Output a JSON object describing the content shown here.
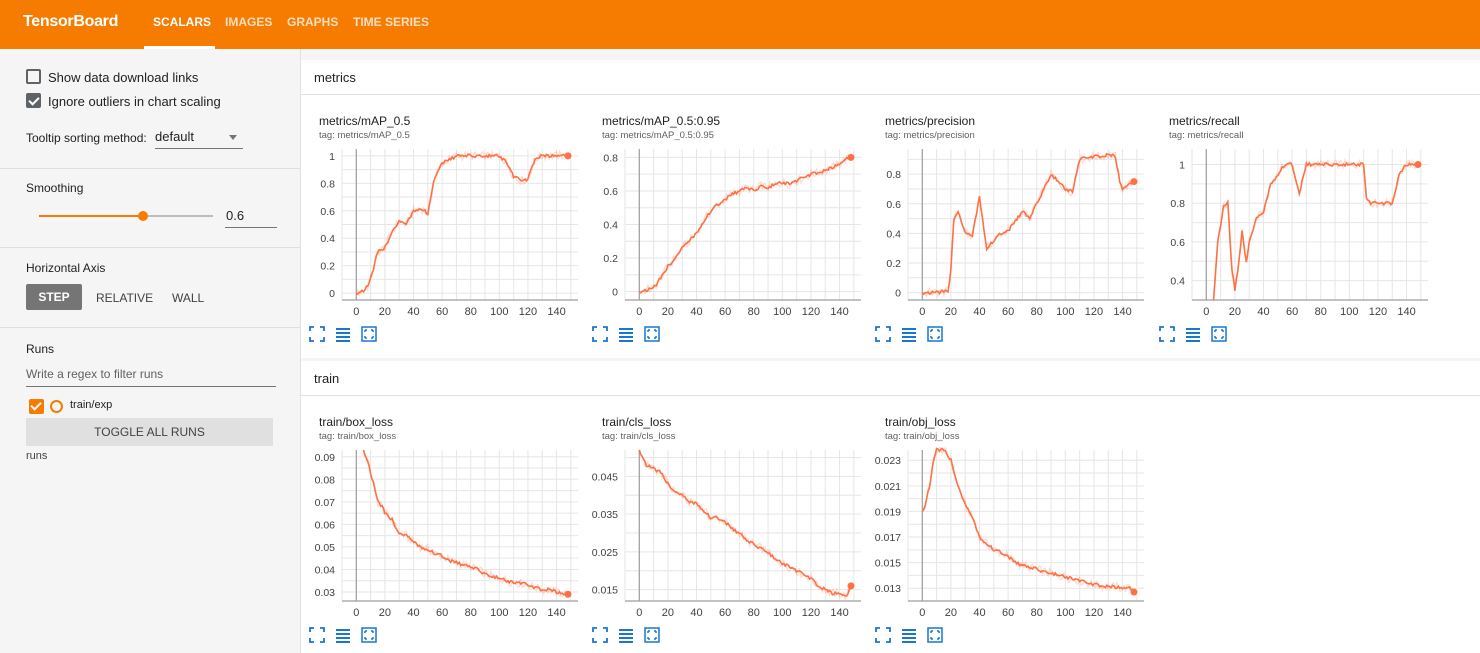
{
  "app": {
    "title": "TensorBoard"
  },
  "tabs": [
    {
      "label": "SCALARS",
      "active": true
    },
    {
      "label": "IMAGES"
    },
    {
      "label": "GRAPHS"
    },
    {
      "label": "TIME SERIES"
    }
  ],
  "sidebar": {
    "show_download_label": "Show data download links",
    "show_download_checked": false,
    "ignore_outliers_label": "Ignore outliers in chart scaling",
    "ignore_outliers_checked": true,
    "tooltip_label": "Tooltip sorting method:",
    "tooltip_value": "default",
    "smoothing_label": "Smoothing",
    "smoothing_value": "0.6",
    "smoothing_fraction": 0.6,
    "axis_label": "Horizontal Axis",
    "axis_buttons": [
      "STEP",
      "RELATIVE",
      "WALL"
    ],
    "axis_selected": "STEP",
    "runs_label": "Runs",
    "filter_placeholder": "Write a regex to filter runs",
    "run_name": "train/exp",
    "toggle_label": "TOGGLE ALL RUNS",
    "runs_dir": "runs"
  },
  "colors": {
    "brand": "#f57c00",
    "series": "#ff7043",
    "icon": "#1976d2"
  },
  "sections": [
    {
      "name": "metrics",
      "charts": [
        {
          "title": "metrics/mAP_0.5",
          "tag": "tag: metrics/mAP_0.5"
        },
        {
          "title": "metrics/mAP_0.5:0.95",
          "tag": "tag: metrics/mAP_0.5:0.95"
        },
        {
          "title": "metrics/precision",
          "tag": "tag: metrics/precision"
        },
        {
          "title": "metrics/recall",
          "tag": "tag: metrics/recall"
        }
      ]
    },
    {
      "name": "train",
      "charts": [
        {
          "title": "train/box_loss",
          "tag": "tag: train/box_loss"
        },
        {
          "title": "train/cls_loss",
          "tag": "tag: train/cls_loss"
        },
        {
          "title": "train/obj_loss",
          "tag": "tag: train/obj_loss"
        }
      ]
    }
  ],
  "chart_data": [
    {
      "type": "line",
      "title": "metrics/mAP_0.5",
      "xlim": [
        -10,
        155
      ],
      "ylim": [
        -0.05,
        1.05
      ],
      "xticks": [
        0,
        20,
        40,
        60,
        80,
        100,
        120,
        140
      ],
      "yticks": [
        0,
        0.2,
        0.4,
        0.6,
        0.8,
        1
      ],
      "ytick_labels": [
        "0",
        "0.2",
        "0.4",
        "0.6",
        "0.8",
        "1"
      ],
      "series": [
        {
          "x": [
            0,
            5,
            8,
            10,
            15,
            20,
            25,
            30,
            35,
            40,
            45,
            50,
            55,
            60,
            65,
            70,
            80,
            90,
            100,
            105,
            110,
            115,
            120,
            125,
            130,
            140,
            148
          ],
          "y": [
            0,
            0.02,
            0.05,
            0.1,
            0.3,
            0.33,
            0.45,
            0.52,
            0.5,
            0.6,
            0.62,
            0.58,
            0.85,
            0.95,
            0.97,
            1,
            1,
            1,
            1,
            0.95,
            0.85,
            0.82,
            0.83,
            0.98,
            1,
            1,
            1
          ]
        }
      ]
    },
    {
      "type": "line",
      "title": "metrics/mAP_0.5:0.95",
      "xlim": [
        -10,
        155
      ],
      "ylim": [
        -0.05,
        0.85
      ],
      "xticks": [
        0,
        20,
        40,
        60,
        80,
        100,
        120,
        140
      ],
      "yticks": [
        0,
        0.2,
        0.4,
        0.6,
        0.8
      ],
      "ytick_labels": [
        "0",
        "0.2",
        "0.4",
        "0.6",
        "0.8"
      ],
      "series": [
        {
          "x": [
            0,
            5,
            10,
            15,
            20,
            25,
            30,
            35,
            40,
            45,
            50,
            55,
            60,
            65,
            70,
            75,
            80,
            85,
            90,
            95,
            100,
            105,
            110,
            115,
            120,
            125,
            130,
            135,
            140,
            145,
            148
          ],
          "y": [
            0,
            0.01,
            0.02,
            0.08,
            0.15,
            0.2,
            0.26,
            0.3,
            0.35,
            0.42,
            0.48,
            0.52,
            0.55,
            0.58,
            0.6,
            0.62,
            0.6,
            0.63,
            0.62,
            0.64,
            0.65,
            0.64,
            0.66,
            0.68,
            0.7,
            0.71,
            0.72,
            0.74,
            0.76,
            0.79,
            0.8
          ]
        }
      ]
    },
    {
      "type": "line",
      "title": "metrics/precision",
      "xlim": [
        -10,
        155
      ],
      "ylim": [
        -0.05,
        0.97
      ],
      "xticks": [
        0,
        20,
        40,
        60,
        80,
        100,
        120,
        140
      ],
      "yticks": [
        0,
        0.2,
        0.4,
        0.6,
        0.8
      ],
      "ytick_labels": [
        "0",
        "0.2",
        "0.4",
        "0.6",
        "0.8"
      ],
      "series": [
        {
          "x": [
            0,
            10,
            18,
            20,
            22,
            25,
            30,
            35,
            40,
            45,
            50,
            55,
            60,
            65,
            70,
            75,
            80,
            85,
            90,
            95,
            100,
            105,
            110,
            115,
            120,
            125,
            130,
            135,
            138,
            140,
            145,
            148
          ],
          "y": [
            0,
            0,
            0.01,
            0.15,
            0.5,
            0.55,
            0.4,
            0.38,
            0.65,
            0.3,
            0.35,
            0.4,
            0.42,
            0.48,
            0.55,
            0.5,
            0.6,
            0.7,
            0.8,
            0.75,
            0.7,
            0.68,
            0.9,
            0.91,
            0.92,
            0.92,
            0.93,
            0.92,
            0.75,
            0.7,
            0.73,
            0.75
          ]
        }
      ]
    },
    {
      "type": "line",
      "title": "metrics/recall",
      "xlim": [
        -10,
        155
      ],
      "ylim": [
        0.3,
        1.08
      ],
      "xticks": [
        0,
        20,
        40,
        60,
        80,
        100,
        120,
        140
      ],
      "yticks": [
        0.4,
        0.6,
        0.8,
        1
      ],
      "ytick_labels": [
        "0.4",
        "0.6",
        "0.8",
        "1"
      ],
      "series": [
        {
          "x": [
            5,
            8,
            12,
            15,
            18,
            20,
            22,
            25,
            28,
            30,
            35,
            40,
            45,
            50,
            55,
            60,
            65,
            70,
            75,
            80,
            90,
            100,
            110,
            112,
            115,
            120,
            130,
            135,
            140,
            148
          ],
          "y": [
            0.3,
            0.6,
            0.78,
            0.8,
            0.45,
            0.35,
            0.45,
            0.65,
            0.5,
            0.6,
            0.72,
            0.75,
            0.9,
            0.95,
            1,
            1,
            0.85,
            1,
            1,
            1,
            1,
            1,
            1,
            0.82,
            0.8,
            0.8,
            0.8,
            0.95,
            1,
            1
          ]
        }
      ]
    },
    {
      "type": "line",
      "title": "train/box_loss",
      "xlim": [
        -10,
        155
      ],
      "ylim": [
        0.026,
        0.093
      ],
      "xticks": [
        0,
        20,
        40,
        60,
        80,
        100,
        120,
        140
      ],
      "yticks": [
        0.03,
        0.04,
        0.05,
        0.06,
        0.07,
        0.08,
        0.09
      ],
      "ytick_labels": [
        "0.03",
        "0.04",
        "0.05",
        "0.06",
        "0.07",
        "0.08",
        "0.09"
      ],
      "series": [
        {
          "x": [
            5,
            8,
            10,
            12,
            15,
            18,
            20,
            25,
            30,
            35,
            40,
            45,
            50,
            55,
            60,
            65,
            70,
            75,
            80,
            85,
            90,
            95,
            100,
            105,
            110,
            115,
            120,
            125,
            130,
            135,
            140,
            145,
            148
          ],
          "y": [
            0.093,
            0.088,
            0.083,
            0.078,
            0.07,
            0.068,
            0.065,
            0.062,
            0.056,
            0.055,
            0.052,
            0.05,
            0.049,
            0.047,
            0.046,
            0.044,
            0.043,
            0.042,
            0.041,
            0.04,
            0.038,
            0.037,
            0.036,
            0.035,
            0.034,
            0.034,
            0.033,
            0.032,
            0.031,
            0.031,
            0.03,
            0.029,
            0.029
          ]
        }
      ]
    },
    {
      "type": "line",
      "title": "train/cls_loss",
      "xlim": [
        -10,
        155
      ],
      "ylim": [
        0.012,
        0.052
      ],
      "xticks": [
        0,
        20,
        40,
        60,
        80,
        100,
        120,
        140
      ],
      "yticks": [
        0.015,
        0.025,
        0.035,
        0.045
      ],
      "ytick_labels": [
        "0.015",
        "0.025",
        "0.035",
        "0.045"
      ],
      "series": [
        {
          "x": [
            0,
            5,
            10,
            15,
            20,
            25,
            30,
            35,
            40,
            45,
            50,
            55,
            60,
            65,
            70,
            75,
            80,
            85,
            90,
            95,
            100,
            105,
            110,
            115,
            120,
            125,
            130,
            135,
            140,
            145,
            148
          ],
          "y": [
            0.052,
            0.048,
            0.047,
            0.046,
            0.043,
            0.041,
            0.04,
            0.038,
            0.038,
            0.036,
            0.034,
            0.034,
            0.033,
            0.031,
            0.03,
            0.028,
            0.027,
            0.026,
            0.025,
            0.023,
            0.022,
            0.021,
            0.02,
            0.019,
            0.018,
            0.016,
            0.015,
            0.014,
            0.014,
            0.013,
            0.016
          ]
        }
      ]
    },
    {
      "type": "line",
      "title": "train/obj_loss",
      "xlim": [
        -10,
        155
      ],
      "ylim": [
        0.012,
        0.0238
      ],
      "xticks": [
        0,
        20,
        40,
        60,
        80,
        100,
        120,
        140
      ],
      "yticks": [
        0.013,
        0.015,
        0.017,
        0.019,
        0.021,
        0.023
      ],
      "ytick_labels": [
        "0.013",
        "0.015",
        "0.017",
        "0.019",
        "0.021",
        "0.023"
      ],
      "series": [
        {
          "x": [
            0,
            2,
            5,
            8,
            10,
            15,
            20,
            25,
            30,
            35,
            40,
            45,
            50,
            55,
            60,
            65,
            70,
            75,
            80,
            85,
            90,
            95,
            100,
            105,
            110,
            115,
            120,
            125,
            130,
            135,
            140,
            145,
            148
          ],
          "y": [
            0.019,
            0.0195,
            0.021,
            0.023,
            0.0238,
            0.0238,
            0.023,
            0.021,
            0.0195,
            0.0185,
            0.017,
            0.0165,
            0.016,
            0.0158,
            0.0155,
            0.015,
            0.0148,
            0.0146,
            0.0145,
            0.0143,
            0.0142,
            0.014,
            0.0139,
            0.0137,
            0.0136,
            0.0134,
            0.0133,
            0.0132,
            0.0131,
            0.0131,
            0.013,
            0.013,
            0.0127
          ]
        }
      ]
    }
  ]
}
